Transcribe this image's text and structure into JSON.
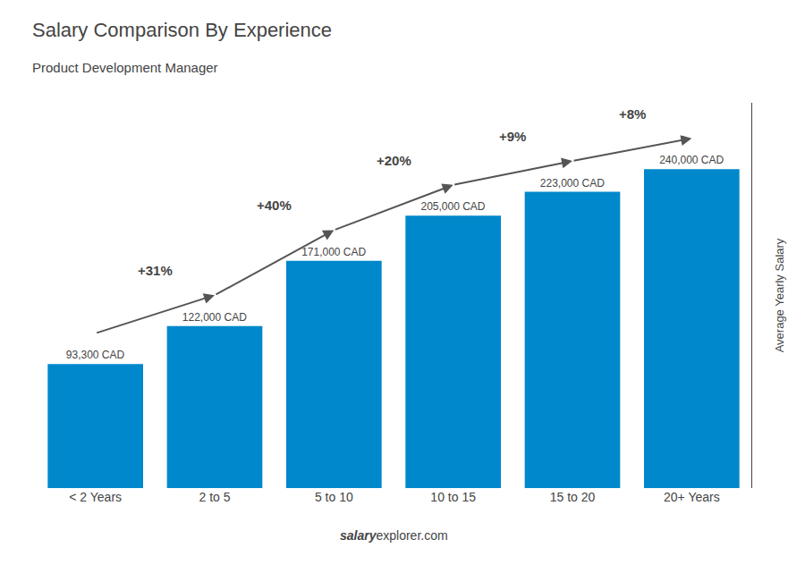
{
  "chart_data": {
    "type": "bar",
    "title": "Salary Comparison By Experience",
    "subtitle": "Product Development Manager",
    "categories": [
      "< 2 Years",
      "2 to 5",
      "5 to 10",
      "10 to 15",
      "15 to 20",
      "20+ Years"
    ],
    "values": [
      93300,
      122000,
      171000,
      205000,
      223000,
      240000
    ],
    "value_labels": [
      "93,300 CAD",
      "122,000 CAD",
      "171,000 CAD",
      "205,000 CAD",
      "223,000 CAD",
      "240,000 CAD"
    ],
    "data_labels": true,
    "color": "#0088cc",
    "ylabel": "Average Yearly Salary",
    "ylim": [
      0,
      290000
    ],
    "yticks": [],
    "tick_labels": "x",
    "grid": false,
    "annotations": [
      "+31%",
      "+40%",
      "+20%",
      "+9%",
      "+8%"
    ],
    "watermark": [
      "salary",
      "explorer.com"
    ]
  }
}
